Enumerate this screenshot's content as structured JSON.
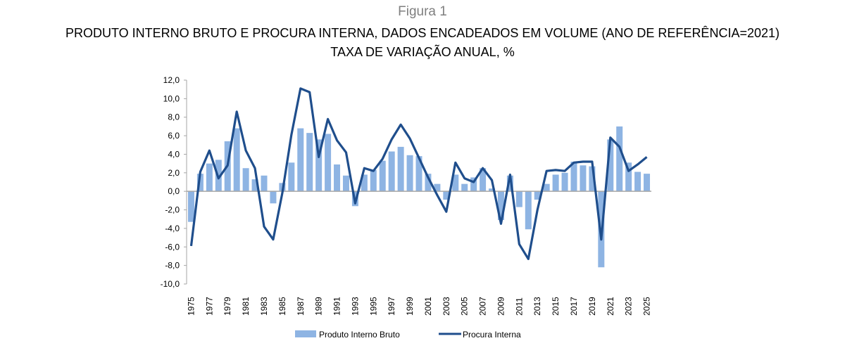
{
  "figure_label": "Figura 1",
  "chart_data": {
    "type": "bar",
    "title": "PRODUTO INTERNO BRUTO E PROCURA INTERNA, DADOS ENCADEADOS EM VOLUME (ANO DE REFERÊNCIA=2021)",
    "subtitle": "TAXA DE VARIAÇÃO ANUAL, %",
    "xlabel": "",
    "ylabel": "",
    "ylim": [
      -10,
      12
    ],
    "yticks": [
      "-10,0",
      "-8,0",
      "-6,0",
      "-4,0",
      "-2,0",
      "0,0",
      "2,0",
      "4,0",
      "6,0",
      "8,0",
      "10,0",
      "12,0"
    ],
    "grid": false,
    "legend": "bottom",
    "categories": [
      1975,
      1976,
      1977,
      1978,
      1979,
      1980,
      1981,
      1982,
      1983,
      1984,
      1985,
      1986,
      1987,
      1988,
      1989,
      1990,
      1991,
      1992,
      1993,
      1994,
      1995,
      1996,
      1997,
      1998,
      1999,
      2000,
      2001,
      2002,
      2003,
      2004,
      2005,
      2006,
      2007,
      2008,
      2009,
      2010,
      2011,
      2012,
      2013,
      2014,
      2015,
      2016,
      2017,
      2018,
      2019,
      2020,
      2021,
      2022,
      2023,
      2024,
      2025
    ],
    "series": [
      {
        "name": "Produto Interno Bruto",
        "kind": "bar",
        "color": "#8eb4e3",
        "values": [
          -3.3,
          1.9,
          3.0,
          3.4,
          5.4,
          6.8,
          2.5,
          1.3,
          1.7,
          -1.3,
          0.9,
          3.1,
          6.8,
          6.3,
          5.6,
          6.2,
          2.9,
          1.7,
          -1.6,
          1.8,
          2.3,
          3.3,
          4.3,
          4.8,
          3.9,
          3.8,
          1.9,
          0.8,
          -0.9,
          1.8,
          0.8,
          1.5,
          2.5,
          0.3,
          -3.1,
          1.7,
          -1.7,
          -4.1,
          -0.9,
          0.8,
          1.8,
          2.0,
          3.2,
          2.8,
          2.7,
          -8.2,
          5.6,
          7.0,
          3.1,
          2.1,
          1.9
        ]
      },
      {
        "name": "Procura Interna",
        "kind": "line",
        "color": "#1f4e8c",
        "values": [
          -5.9,
          2.1,
          4.4,
          1.4,
          2.8,
          8.6,
          4.4,
          2.5,
          -3.8,
          -5.2,
          -0.2,
          6.1,
          11.1,
          10.7,
          3.7,
          7.8,
          5.5,
          4.2,
          -1.3,
          2.5,
          2.2,
          3.5,
          5.6,
          7.2,
          5.7,
          3.6,
          1.5,
          -0.4,
          -2.2,
          3.1,
          1.4,
          1.0,
          2.5,
          1.2,
          -3.5,
          1.8,
          -5.7,
          -7.3,
          -2.0,
          2.2,
          2.3,
          2.2,
          3.1,
          3.2,
          3.2,
          -5.2,
          5.8,
          4.8,
          2.2,
          2.9,
          3.7
        ]
      }
    ]
  }
}
